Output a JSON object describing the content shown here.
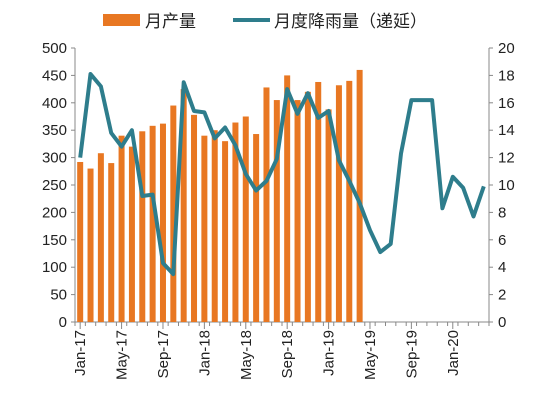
{
  "chart_data": {
    "type": "bar+line",
    "title": "",
    "x": [
      "2017-01",
      "2017-02",
      "2017-03",
      "2017-04",
      "2017-05",
      "2017-06",
      "2017-07",
      "2017-08",
      "2017-09",
      "2017-10",
      "2017-11",
      "2017-12",
      "2018-01",
      "2018-02",
      "2018-03",
      "2018-04",
      "2018-05",
      "2018-06",
      "2018-07",
      "2018-08",
      "2018-09",
      "2018-10",
      "2018-11",
      "2018-12",
      "2019-01",
      "2019-02",
      "2019-03",
      "2019-04",
      "2019-05",
      "2019-06",
      "2019-07",
      "2019-08",
      "2019-09",
      "2019-10",
      "2019-11",
      "2019-12",
      "2020-01",
      "2020-02",
      "2020-03",
      "2020-04"
    ],
    "x_tick_labels": [
      {
        "label": "Jan-17",
        "index": 0
      },
      {
        "label": "May-17",
        "index": 4
      },
      {
        "label": "Sep-17",
        "index": 8
      },
      {
        "label": "Jan-18",
        "index": 12
      },
      {
        "label": "May-18",
        "index": 16
      },
      {
        "label": "Sep-18",
        "index": 20
      },
      {
        "label": "Jan-19",
        "index": 24
      },
      {
        "label": "May-19",
        "index": 28
      },
      {
        "label": "Sep-19",
        "index": 32
      },
      {
        "label": "Jan-20",
        "index": 36
      }
    ],
    "series": [
      {
        "name": "月产量",
        "kind": "bar",
        "axis": "left",
        "color": "#E87722",
        "values": [
          292,
          280,
          308,
          290,
          340,
          320,
          348,
          358,
          362,
          395,
          425,
          378,
          340,
          350,
          330,
          364,
          375,
          343,
          428,
          405,
          450,
          405,
          420,
          438,
          388,
          432,
          440,
          460,
          null,
          null,
          null,
          null,
          null,
          null,
          null,
          null,
          null,
          null,
          null,
          null
        ]
      },
      {
        "name": "月度降雨量（递延）",
        "kind": "line",
        "axis": "right",
        "color": "#2E7D8C",
        "values": [
          12,
          18.1,
          17.2,
          13.8,
          12.8,
          14,
          9.2,
          9.3,
          4.3,
          3.5,
          17.5,
          15.4,
          15.3,
          13.4,
          14.2,
          12.9,
          10.8,
          9.6,
          10.3,
          11.9,
          17,
          15.2,
          16.7,
          14.9,
          15.4,
          11.8,
          10.3,
          8.7,
          6.7,
          5.1,
          5.7,
          12.3,
          16.2,
          16.2,
          16.2,
          8.3,
          10.6,
          9.8,
          7.7,
          9.9
        ]
      }
    ],
    "y_left": {
      "min": 0,
      "max": 500,
      "ticks": [
        0,
        50,
        100,
        150,
        200,
        250,
        300,
        350,
        400,
        450,
        500
      ]
    },
    "y_right": {
      "min": 0,
      "max": 20,
      "ticks": [
        0,
        2,
        4,
        6,
        8,
        10,
        12,
        14,
        16,
        18,
        20
      ]
    },
    "legend_position": "top",
    "grid": false
  }
}
